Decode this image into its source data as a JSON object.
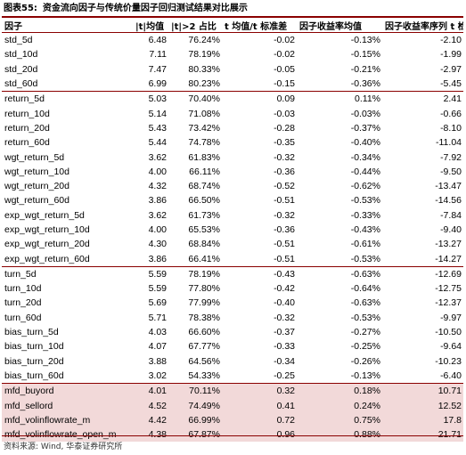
{
  "caption": {
    "number": "图表55:",
    "title": "资金流向因子与传统价量因子回归测试结果对比展示"
  },
  "headers": [
    "因子",
    "|t|均值",
    "|t|>2 占比",
    "t 均值/t 标准差",
    "因子收益率均值",
    "因子收益率序列 t 检验"
  ],
  "groups": [
    {
      "highlight": false,
      "rows": [
        [
          "std_5d",
          "6.48",
          "76.24%",
          "-0.02",
          "-0.13%",
          "-2.10"
        ],
        [
          "std_10d",
          "7.11",
          "78.19%",
          "-0.02",
          "-0.15%",
          "-1.99"
        ],
        [
          "std_20d",
          "7.47",
          "80.33%",
          "-0.05",
          "-0.21%",
          "-2.97"
        ],
        [
          "std_60d",
          "6.99",
          "80.23%",
          "-0.15",
          "-0.36%",
          "-5.45"
        ]
      ]
    },
    {
      "highlight": false,
      "rows": [
        [
          "return_5d",
          "5.03",
          "70.40%",
          "0.09",
          "0.11%",
          "2.41"
        ],
        [
          "return_10d",
          "5.14",
          "71.08%",
          "-0.03",
          "-0.03%",
          "-0.66"
        ],
        [
          "return_20d",
          "5.43",
          "73.42%",
          "-0.28",
          "-0.37%",
          "-8.10"
        ],
        [
          "return_60d",
          "5.44",
          "74.78%",
          "-0.35",
          "-0.40%",
          "-11.04"
        ],
        [
          "wgt_return_5d",
          "3.62",
          "61.83%",
          "-0.32",
          "-0.34%",
          "-7.92"
        ],
        [
          "wgt_return_10d",
          "4.00",
          "66.11%",
          "-0.36",
          "-0.44%",
          "-9.50"
        ],
        [
          "wgt_return_20d",
          "4.32",
          "68.74%",
          "-0.52",
          "-0.62%",
          "-13.47"
        ],
        [
          "wgt_return_60d",
          "3.86",
          "66.50%",
          "-0.51",
          "-0.53%",
          "-14.56"
        ],
        [
          "exp_wgt_return_5d",
          "3.62",
          "61.73%",
          "-0.32",
          "-0.33%",
          "-7.84"
        ],
        [
          "exp_wgt_return_10d",
          "4.00",
          "65.53%",
          "-0.36",
          "-0.43%",
          "-9.40"
        ],
        [
          "exp_wgt_return_20d",
          "4.30",
          "68.84%",
          "-0.51",
          "-0.61%",
          "-13.27"
        ],
        [
          "exp_wgt_return_60d",
          "3.86",
          "66.41%",
          "-0.51",
          "-0.53%",
          "-14.27"
        ]
      ]
    },
    {
      "highlight": false,
      "rows": [
        [
          "turn_5d",
          "5.59",
          "78.19%",
          "-0.43",
          "-0.63%",
          "-12.69"
        ],
        [
          "turn_10d",
          "5.59",
          "77.80%",
          "-0.42",
          "-0.64%",
          "-12.75"
        ],
        [
          "turn_20d",
          "5.69",
          "77.99%",
          "-0.40",
          "-0.63%",
          "-12.37"
        ],
        [
          "turn_60d",
          "5.71",
          "78.38%",
          "-0.32",
          "-0.53%",
          "-9.97"
        ],
        [
          "bias_turn_5d",
          "4.03",
          "66.60%",
          "-0.37",
          "-0.27%",
          "-10.50"
        ],
        [
          "bias_turn_10d",
          "4.07",
          "67.77%",
          "-0.33",
          "-0.25%",
          "-9.64"
        ],
        [
          "bias_turn_20d",
          "3.88",
          "64.56%",
          "-0.34",
          "-0.26%",
          "-10.23"
        ],
        [
          "bias_turn_60d",
          "3.02",
          "54.33%",
          "-0.25",
          "-0.13%",
          "-6.40"
        ]
      ]
    },
    {
      "highlight": true,
      "rows": [
        [
          "mfd_buyord",
          "4.01",
          "70.11%",
          "0.32",
          "0.18%",
          "10.71"
        ],
        [
          "mfd_sellord",
          "4.52",
          "74.49%",
          "0.41",
          "0.24%",
          "12.52"
        ],
        [
          "mfd_volinflowrate_m",
          "4.42",
          "66.99%",
          "0.72",
          "0.75%",
          "17.8"
        ],
        [
          "mfd_volinflowrate_open_m",
          "4.38",
          "67.87%",
          "0.96",
          "0.88%",
          "21.71"
        ]
      ]
    }
  ],
  "source": "资料来源: Wind, 华泰证券研究所",
  "colors": {
    "rule": "#8a0000",
    "highlight": "#f2d9d9"
  }
}
